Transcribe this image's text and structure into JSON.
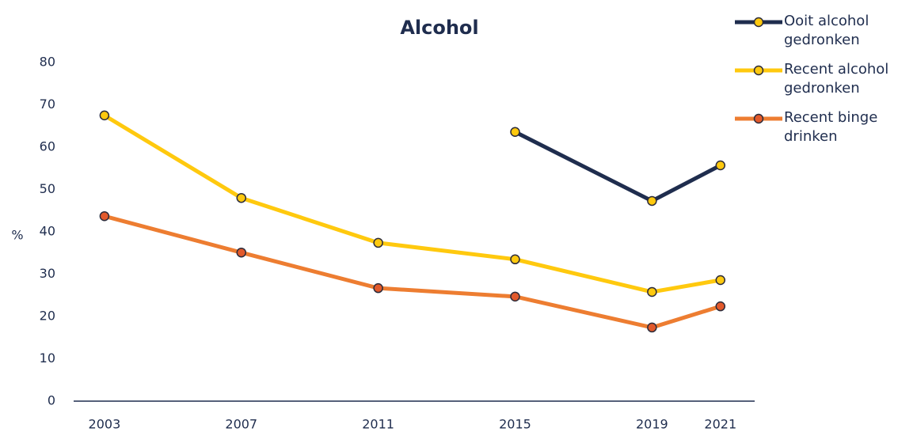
{
  "chart_data": {
    "type": "line",
    "title": "Alcohol",
    "ylabel": "%",
    "x": [
      2003,
      2007,
      2011,
      2015,
      2019,
      2021
    ],
    "series": [
      {
        "name": "Ooit alcohol gedronken",
        "color": "#1f2d4e",
        "marker_color": "#ffc90e",
        "values": [
          null,
          null,
          null,
          63.6,
          47.3,
          55.7
        ]
      },
      {
        "name": "Recent alcohol gedronken",
        "color": "#ffc90e",
        "marker_color": "#ffc90e",
        "values": [
          67.5,
          48.0,
          37.4,
          33.5,
          25.8,
          28.6
        ]
      },
      {
        "name": "Recent binge drinken",
        "color": "#ed7d31",
        "marker_color": "#e2592b",
        "values": [
          43.7,
          35.1,
          26.7,
          24.7,
          17.4,
          22.4
        ]
      }
    ],
    "xlim": [
      2002.1,
      2022
    ],
    "xticks": [
      2003,
      2007,
      2011,
      2015,
      2019,
      2021
    ],
    "ylim": [
      0,
      80
    ],
    "yticks": [
      0,
      10,
      20,
      30,
      40,
      50,
      60,
      70,
      80
    ],
    "grid": false,
    "legend": "top right"
  }
}
